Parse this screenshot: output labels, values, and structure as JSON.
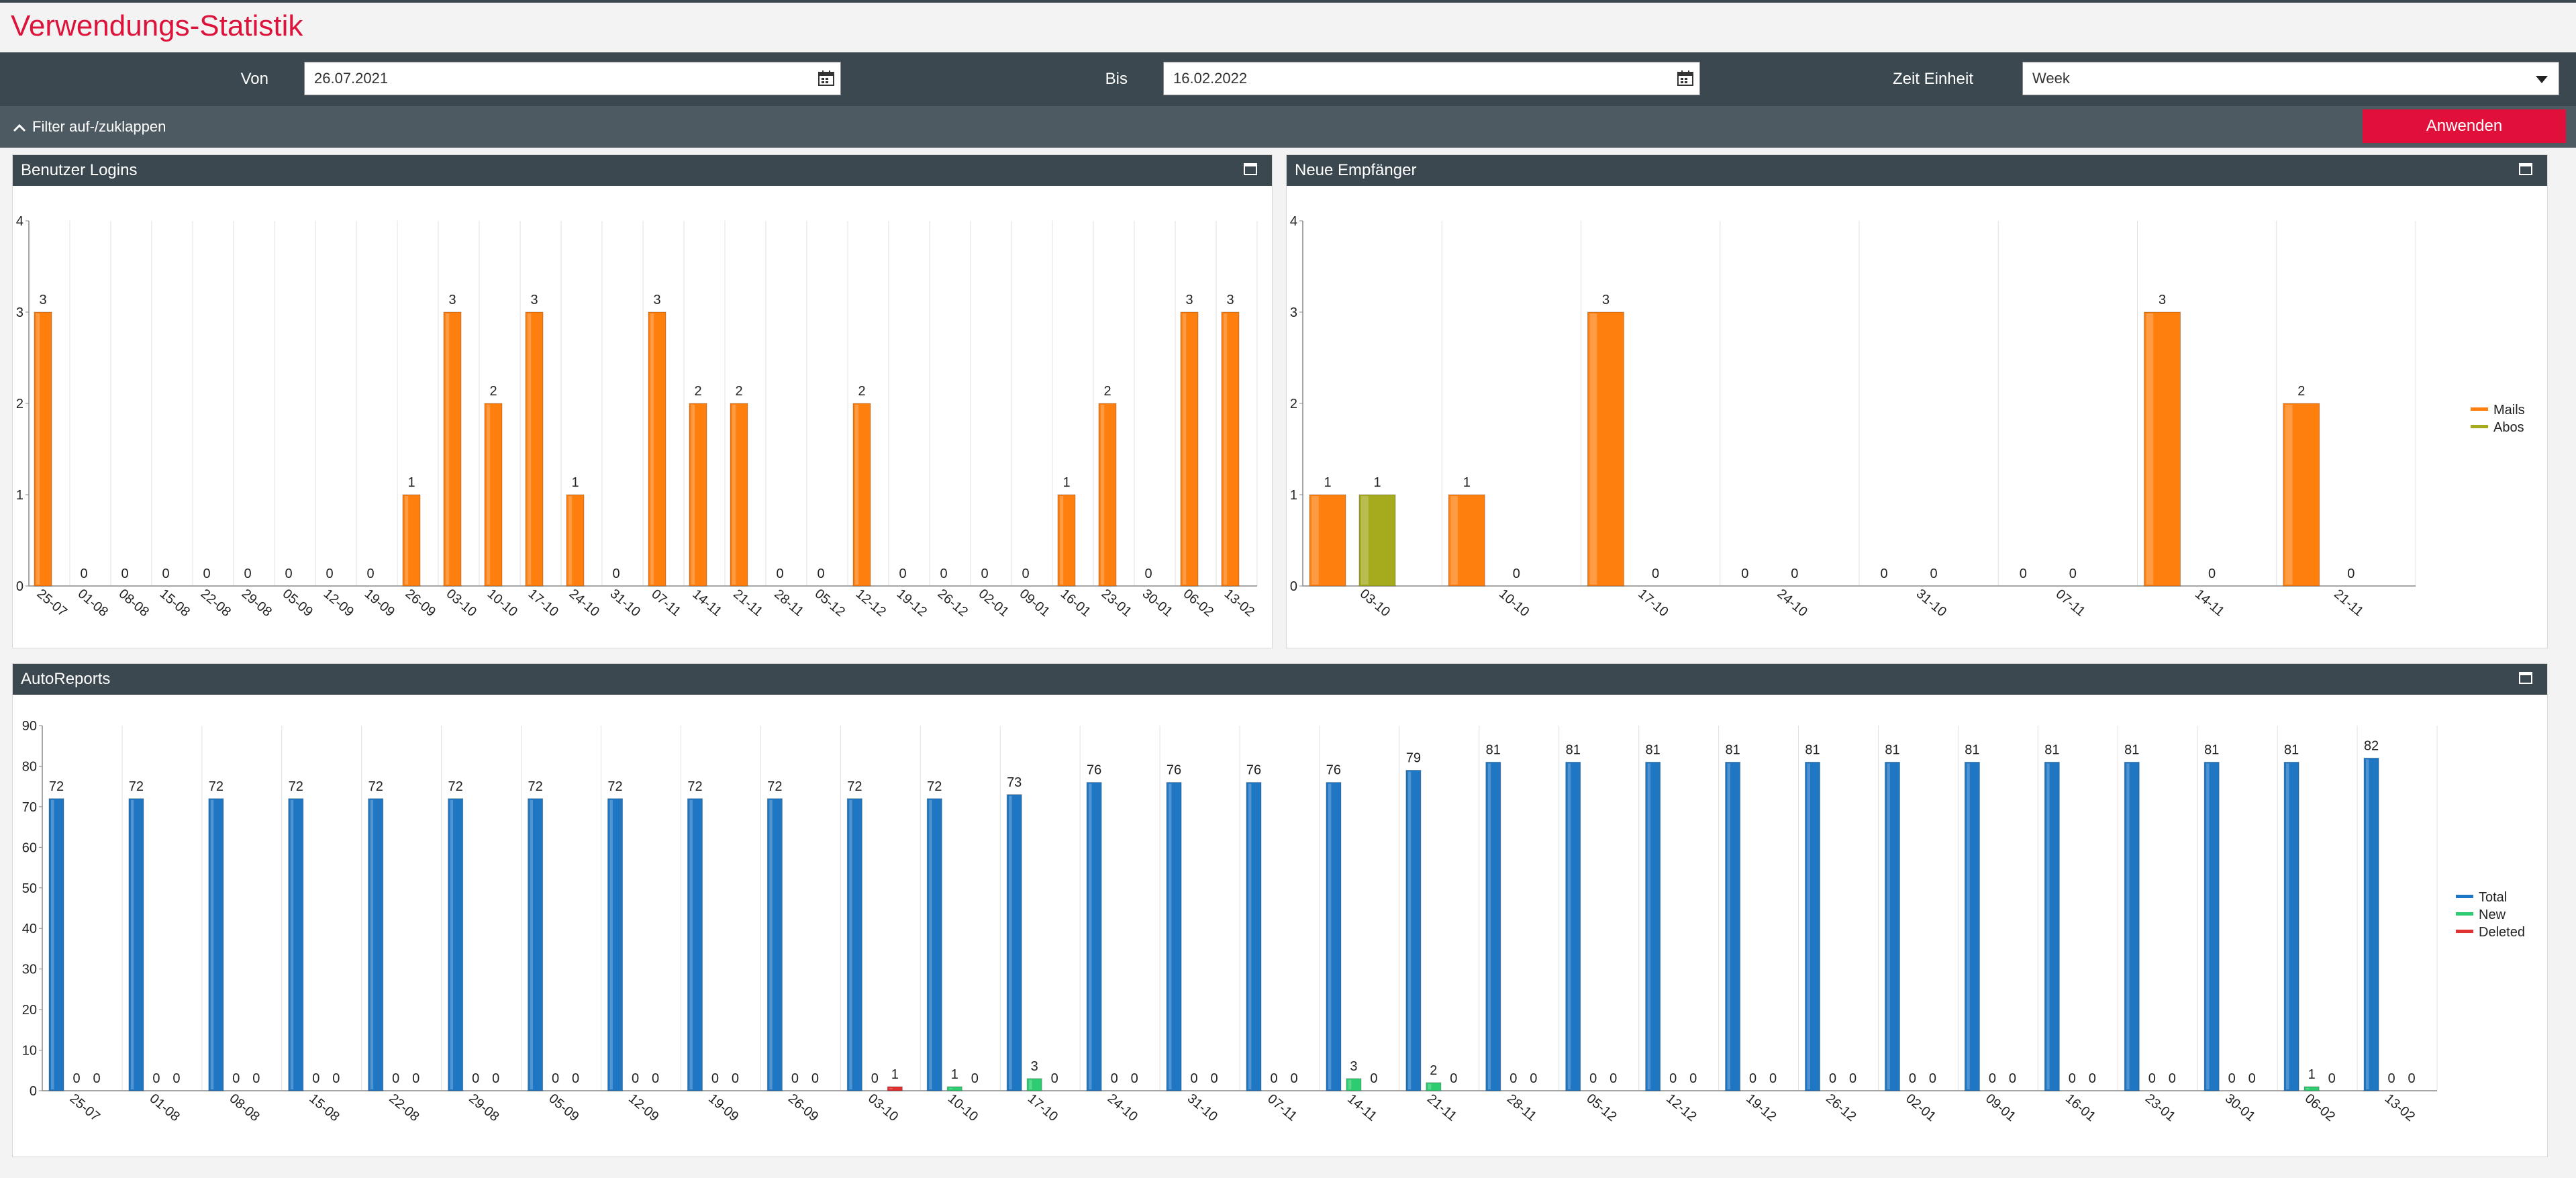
{
  "page": {
    "title": "Verwendungs-Statistik"
  },
  "filters": {
    "von_label": "Von",
    "von_value": "26.07.2021",
    "bis_label": "Bis",
    "bis_value": "16.02.2022",
    "zeit_label": "Zeit Einheit",
    "zeit_value": "Week",
    "toggle_label": "Filter auf-/zuklappen",
    "apply_label": "Anwenden"
  },
  "icons": {
    "date_picker": "calendar-icon",
    "dropdown": "chevron-down-icon",
    "toggle": "chevron-up-icon",
    "panel": "maximize-icon"
  },
  "colors": {
    "accent": "#dc143c",
    "header": "#3b4850",
    "mails": "#ff7f0e",
    "abos": "#a6ab1e",
    "total": "#1f77c4",
    "new": "#2ecc71",
    "deleted": "#e03030"
  },
  "panels": {
    "logins": {
      "title": "Benutzer Logins"
    },
    "empfaenger": {
      "title": "Neue Empfänger"
    },
    "autoreports": {
      "title": "AutoReports"
    }
  },
  "chart_data": [
    {
      "type": "bar",
      "categories": [
        "25-07",
        "01-08",
        "08-08",
        "15-08",
        "22-08",
        "29-08",
        "05-09",
        "12-09",
        "19-09",
        "26-09",
        "03-10",
        "10-10",
        "17-10",
        "24-10",
        "31-10",
        "07-11",
        "14-11",
        "21-11",
        "28-11",
        "05-12",
        "12-12",
        "19-12",
        "26-12",
        "02-01",
        "09-01",
        "16-01",
        "23-01",
        "30-01",
        "06-02",
        "13-02"
      ],
      "series": [
        {
          "values": [
            3,
            0,
            0,
            0,
            0,
            0,
            0,
            0,
            0,
            1,
            3,
            2,
            3,
            1,
            0,
            3,
            2,
            2,
            0,
            0,
            2,
            0,
            0,
            0,
            0,
            1,
            2,
            0,
            3,
            3
          ]
        }
      ],
      "ylim": [
        0,
        4
      ],
      "yticks": [
        0,
        1,
        2,
        3,
        4
      ],
      "grid": true
    },
    {
      "type": "bar",
      "categories": [
        "03-10",
        "10-10",
        "17-10",
        "24-10",
        "31-10",
        "07-11",
        "14-11",
        "21-11"
      ],
      "series": [
        {
          "name": "Mails",
          "values": [
            1,
            1,
            3,
            0,
            0,
            0,
            3,
            2
          ]
        },
        {
          "name": "Abos",
          "values": [
            1,
            0,
            0,
            0,
            0,
            0,
            0,
            0
          ]
        }
      ],
      "ylim": [
        0,
        4
      ],
      "yticks": [
        0,
        1,
        2,
        3,
        4
      ],
      "grid": true,
      "legend": "right"
    },
    {
      "type": "bar",
      "categories": [
        "25-07",
        "01-08",
        "08-08",
        "15-08",
        "22-08",
        "29-08",
        "05-09",
        "12-09",
        "19-09",
        "26-09",
        "03-10",
        "10-10",
        "17-10",
        "24-10",
        "31-10",
        "07-11",
        "14-11",
        "21-11",
        "28-11",
        "05-12",
        "12-12",
        "19-12",
        "26-12",
        "02-01",
        "09-01",
        "16-01",
        "23-01",
        "30-01",
        "06-02",
        "13-02"
      ],
      "series": [
        {
          "name": "Total",
          "values": [
            72,
            72,
            72,
            72,
            72,
            72,
            72,
            72,
            72,
            72,
            72,
            72,
            73,
            76,
            76,
            76,
            76,
            79,
            81,
            81,
            81,
            81,
            81,
            81,
            81,
            81,
            81,
            81,
            81,
            82
          ]
        },
        {
          "name": "New",
          "values": [
            0,
            0,
            0,
            0,
            0,
            0,
            0,
            0,
            0,
            0,
            0,
            1,
            3,
            0,
            0,
            0,
            3,
            2,
            0,
            0,
            0,
            0,
            0,
            0,
            0,
            0,
            0,
            0,
            1,
            0
          ]
        },
        {
          "name": "Deleted",
          "values": [
            0,
            0,
            0,
            0,
            0,
            0,
            0,
            0,
            0,
            0,
            1,
            0,
            0,
            0,
            0,
            0,
            0,
            0,
            0,
            0,
            0,
            0,
            0,
            0,
            0,
            0,
            0,
            0,
            0,
            0
          ]
        }
      ],
      "ylim": [
        0,
        90
      ],
      "yticks": [
        0,
        10,
        20,
        30,
        40,
        50,
        60,
        70,
        80,
        90
      ],
      "grid": true,
      "legend": "right"
    }
  ]
}
